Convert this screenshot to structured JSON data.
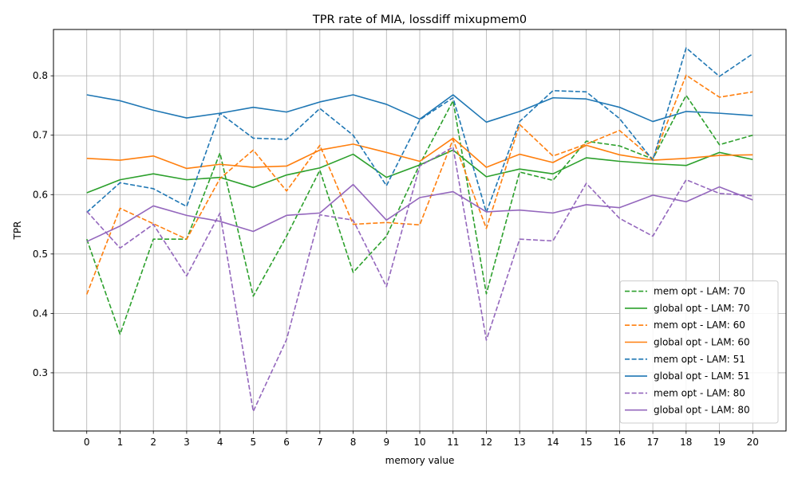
{
  "chart_data": {
    "type": "line",
    "title": "TPR rate of MIA, lossdiff mixupmem0",
    "xlabel": "memory value",
    "ylabel": "TPR",
    "x": [
      0,
      1,
      2,
      3,
      4,
      5,
      6,
      7,
      8,
      9,
      10,
      11,
      12,
      13,
      14,
      15,
      16,
      17,
      18,
      19,
      20
    ],
    "x_ticks": [
      "0",
      "1",
      "2",
      "3",
      "4",
      "5",
      "6",
      "7",
      "8",
      "9",
      "10",
      "11",
      "12",
      "13",
      "14",
      "15",
      "16",
      "17",
      "18",
      "19",
      "20"
    ],
    "xlim": [
      -1,
      21
    ],
    "ylim": [
      0.202,
      0.878
    ],
    "y_ticks": [
      0.3,
      0.4,
      0.5,
      0.6,
      0.7,
      0.8
    ],
    "y_tick_labels": [
      "0.3",
      "0.4",
      "0.5",
      "0.6",
      "0.7",
      "0.8"
    ],
    "grid": true,
    "legend_position": "bottom-right",
    "series": [
      {
        "name": "mem opt - LAM: 70",
        "color": "#2ca02c",
        "style": "dashed",
        "values": [
          0.525,
          0.365,
          0.525,
          0.525,
          0.67,
          0.429,
          0.53,
          0.641,
          0.469,
          0.53,
          0.651,
          0.758,
          0.433,
          0.638,
          0.624,
          0.69,
          0.682,
          0.66,
          0.767,
          0.684,
          0.7
        ]
      },
      {
        "name": "global opt - LAM: 70",
        "color": "#2ca02c",
        "style": "solid",
        "values": [
          0.603,
          0.625,
          0.635,
          0.625,
          0.629,
          0.612,
          0.633,
          0.645,
          0.668,
          0.629,
          0.65,
          0.675,
          0.63,
          0.643,
          0.635,
          0.662,
          0.656,
          0.652,
          0.649,
          0.671,
          0.659
        ]
      },
      {
        "name": "mem opt - LAM: 60",
        "color": "#ff7f0e",
        "style": "dashed",
        "values": [
          0.432,
          0.577,
          0.551,
          0.525,
          0.627,
          0.675,
          0.606,
          0.683,
          0.55,
          0.553,
          0.549,
          0.693,
          0.543,
          0.718,
          0.665,
          0.685,
          0.708,
          0.66,
          0.801,
          0.764,
          0.773
        ]
      },
      {
        "name": "global opt - LAM: 60",
        "color": "#ff7f0e",
        "style": "solid",
        "values": [
          0.661,
          0.658,
          0.665,
          0.644,
          0.651,
          0.646,
          0.648,
          0.675,
          0.685,
          0.671,
          0.656,
          0.695,
          0.646,
          0.668,
          0.654,
          0.683,
          0.667,
          0.658,
          0.661,
          0.666,
          0.667
        ]
      },
      {
        "name": "mem opt - LAM: 51",
        "color": "#1f77b4",
        "style": "dashed",
        "values": [
          0.57,
          0.62,
          0.61,
          0.58,
          0.737,
          0.695,
          0.693,
          0.745,
          0.7,
          0.615,
          0.726,
          0.763,
          0.57,
          0.723,
          0.775,
          0.773,
          0.728,
          0.658,
          0.847,
          0.799,
          0.837
        ]
      },
      {
        "name": "global opt - LAM: 51",
        "color": "#1f77b4",
        "style": "solid",
        "values": [
          0.768,
          0.758,
          0.742,
          0.729,
          0.737,
          0.747,
          0.739,
          0.756,
          0.768,
          0.752,
          0.727,
          0.768,
          0.722,
          0.74,
          0.763,
          0.761,
          0.747,
          0.723,
          0.74,
          0.737,
          0.733
        ]
      },
      {
        "name": "mem opt - LAM: 80",
        "color": "#9467bd",
        "style": "dashed",
        "values": [
          0.572,
          0.51,
          0.55,
          0.463,
          0.569,
          0.235,
          0.356,
          0.566,
          0.557,
          0.445,
          0.648,
          0.68,
          0.355,
          0.525,
          0.522,
          0.619,
          0.56,
          0.53,
          0.625,
          0.602,
          0.598
        ]
      },
      {
        "name": "global opt - LAM: 80",
        "color": "#9467bd",
        "style": "solid",
        "values": [
          0.521,
          0.547,
          0.581,
          0.565,
          0.555,
          0.538,
          0.565,
          0.569,
          0.617,
          0.557,
          0.595,
          0.605,
          0.571,
          0.574,
          0.569,
          0.583,
          0.578,
          0.599,
          0.588,
          0.613,
          0.591
        ]
      }
    ]
  }
}
